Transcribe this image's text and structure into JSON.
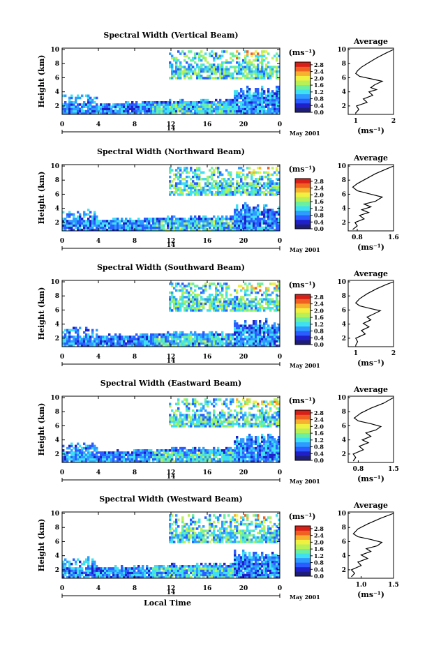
{
  "chart_data": [
    {
      "type": "heatmap",
      "title": "Spectral Width (Vertical Beam)",
      "ylabel": "Height (km)",
      "xlabel": "",
      "x_ticks": [
        "0",
        "4",
        "8",
        "12",
        "16",
        "20",
        "0"
      ],
      "y_ticks": [
        "2",
        "4",
        "6",
        "8",
        "10"
      ],
      "ylim": [
        0.8,
        10.2
      ],
      "xlim": [
        0,
        24
      ],
      "date_label": "14",
      "month_label": "May 2001",
      "colorbar": {
        "unit": "(ms⁻¹)",
        "ticks": [
          "0.0",
          "0.4",
          "0.8",
          "1.2",
          "1.6",
          "2.0",
          "2.4",
          "2.8"
        ]
      },
      "average": {
        "title": "Average",
        "xlabel": "(ms⁻¹)",
        "x_ticks": [
          "1",
          "2"
        ],
        "y_ticks": [
          "2",
          "4",
          "6",
          "8",
          "10"
        ],
        "xlim": [
          0.8,
          2.0
        ],
        "ylim": [
          0.8,
          10.2
        ],
        "profile": [
          [
            1.0,
            1.0
          ],
          [
            1.08,
            1.5
          ],
          [
            1.02,
            2.0
          ],
          [
            1.3,
            2.5
          ],
          [
            1.2,
            3.0
          ],
          [
            1.45,
            3.5
          ],
          [
            1.35,
            4.0
          ],
          [
            1.55,
            4.3
          ],
          [
            1.4,
            4.6
          ],
          [
            1.5,
            5.0
          ],
          [
            1.7,
            5.5
          ],
          [
            1.45,
            5.8
          ],
          [
            1.1,
            6.2
          ],
          [
            1.0,
            6.6
          ],
          [
            1.05,
            7.0
          ],
          [
            1.15,
            7.5
          ],
          [
            1.3,
            8.0
          ],
          [
            1.55,
            8.8
          ],
          [
            1.8,
            9.5
          ],
          [
            2.0,
            10.0
          ]
        ]
      }
    },
    {
      "type": "heatmap",
      "title": "Spectral Width (Northward Beam)",
      "ylabel": "Height (km)",
      "xlabel": "",
      "x_ticks": [
        "0",
        "4",
        "8",
        "12",
        "16",
        "20",
        "0"
      ],
      "y_ticks": [
        "2",
        "4",
        "6",
        "8",
        "10"
      ],
      "ylim": [
        0.8,
        10.2
      ],
      "xlim": [
        0,
        24
      ],
      "date_label": "14",
      "month_label": "May 2001",
      "colorbar": {
        "unit": "(ms⁻¹)",
        "ticks": [
          "0.0",
          "0.4",
          "0.8",
          "1.2",
          "1.6",
          "2.0",
          "2.4",
          "2.8"
        ]
      },
      "average": {
        "title": "Average",
        "xlabel": "(ms⁻¹)",
        "x_ticks": [
          "0.8",
          "1.6"
        ],
        "y_ticks": [
          "2",
          "4",
          "6",
          "8",
          "10"
        ],
        "xlim": [
          0.6,
          1.6
        ],
        "ylim": [
          0.8,
          10.2
        ],
        "profile": [
          [
            0.7,
            1.0
          ],
          [
            0.8,
            1.5
          ],
          [
            0.75,
            2.0
          ],
          [
            0.95,
            2.5
          ],
          [
            0.85,
            3.0
          ],
          [
            1.05,
            3.4
          ],
          [
            0.9,
            3.8
          ],
          [
            1.1,
            4.2
          ],
          [
            0.95,
            4.6
          ],
          [
            1.2,
            5.0
          ],
          [
            1.35,
            5.6
          ],
          [
            1.1,
            6.0
          ],
          [
            0.8,
            6.5
          ],
          [
            0.7,
            7.0
          ],
          [
            0.8,
            7.5
          ],
          [
            1.0,
            8.2
          ],
          [
            1.2,
            8.9
          ],
          [
            1.45,
            9.6
          ],
          [
            1.6,
            10.0
          ]
        ]
      }
    },
    {
      "type": "heatmap",
      "title": "Spectral Width (Southward Beam)",
      "ylabel": "Height (km)",
      "xlabel": "",
      "x_ticks": [
        "0",
        "4",
        "8",
        "12",
        "16",
        "20",
        "0"
      ],
      "y_ticks": [
        "2",
        "4",
        "6",
        "8",
        "10"
      ],
      "ylim": [
        0.8,
        10.2
      ],
      "xlim": [
        0,
        24
      ],
      "date_label": "14",
      "month_label": "May 2001",
      "colorbar": {
        "unit": "(ms⁻¹)",
        "ticks": [
          "0.0",
          "0.4",
          "0.8",
          "1.2",
          "1.6",
          "2.0",
          "2.4",
          "2.8"
        ]
      },
      "average": {
        "title": "Average",
        "xlabel": "(ms⁻¹)",
        "x_ticks": [
          "1",
          "2"
        ],
        "y_ticks": [
          "2",
          "4",
          "6",
          "8",
          "10"
        ],
        "xlim": [
          0.8,
          2.0
        ],
        "ylim": [
          0.8,
          10.2
        ],
        "profile": [
          [
            1.0,
            1.0
          ],
          [
            1.05,
            1.5
          ],
          [
            1.0,
            2.0
          ],
          [
            1.25,
            2.6
          ],
          [
            1.15,
            3.1
          ],
          [
            1.35,
            3.6
          ],
          [
            1.2,
            4.1
          ],
          [
            1.4,
            4.6
          ],
          [
            1.3,
            5.0
          ],
          [
            1.5,
            5.5
          ],
          [
            1.65,
            5.9
          ],
          [
            1.4,
            6.2
          ],
          [
            1.1,
            6.6
          ],
          [
            1.0,
            7.0
          ],
          [
            1.1,
            7.6
          ],
          [
            1.3,
            8.3
          ],
          [
            1.55,
            9.0
          ],
          [
            1.8,
            9.6
          ],
          [
            2.0,
            10.0
          ]
        ]
      }
    },
    {
      "type": "heatmap",
      "title": "Spectral Width (Eastward Beam)",
      "ylabel": "Height (km)",
      "xlabel": "",
      "x_ticks": [
        "0",
        "4",
        "8",
        "12",
        "16",
        "20",
        "0"
      ],
      "y_ticks": [
        "2",
        "4",
        "6",
        "8",
        "10"
      ],
      "ylim": [
        0.8,
        10.2
      ],
      "xlim": [
        0,
        24
      ],
      "date_label": "14",
      "month_label": "May 2001",
      "colorbar": {
        "unit": "(ms⁻¹)",
        "ticks": [
          "0.0",
          "0.4",
          "0.8",
          "1.2",
          "1.6",
          "2.0",
          "2.4",
          "2.8"
        ]
      },
      "average": {
        "title": "Average",
        "xlabel": "(ms⁻¹)",
        "x_ticks": [
          "0.8",
          "1.5"
        ],
        "y_ticks": [
          "2",
          "4",
          "6",
          "8",
          "10"
        ],
        "xlim": [
          0.6,
          1.5
        ],
        "ylim": [
          0.8,
          10.2
        ],
        "profile": [
          [
            0.7,
            1.0
          ],
          [
            0.75,
            1.5
          ],
          [
            0.7,
            2.0
          ],
          [
            0.9,
            2.6
          ],
          [
            0.82,
            3.1
          ],
          [
            1.0,
            3.6
          ],
          [
            0.88,
            4.0
          ],
          [
            1.05,
            4.5
          ],
          [
            0.95,
            5.0
          ],
          [
            1.15,
            5.4
          ],
          [
            1.25,
            5.9
          ],
          [
            1.05,
            6.3
          ],
          [
            0.8,
            6.7
          ],
          [
            0.72,
            7.1
          ],
          [
            0.85,
            7.8
          ],
          [
            1.05,
            8.5
          ],
          [
            1.3,
            9.2
          ],
          [
            1.5,
            10.0
          ]
        ]
      }
    },
    {
      "type": "heatmap",
      "title": "Spectral Width (Westward Beam)",
      "ylabel": "Height (km)",
      "xlabel": "Local Time",
      "x_ticks": [
        "0",
        "4",
        "8",
        "12",
        "16",
        "20",
        "0"
      ],
      "y_ticks": [
        "2",
        "4",
        "6",
        "8",
        "10"
      ],
      "ylim": [
        0.8,
        10.2
      ],
      "xlim": [
        0,
        24
      ],
      "date_label": "14",
      "month_label": "May 2001",
      "colorbar": {
        "unit": "(ms⁻¹)",
        "ticks": [
          "0.0",
          "0.4",
          "0.8",
          "1.2",
          "1.6",
          "2.0",
          "2.4",
          "2.8"
        ]
      },
      "average": {
        "title": "Average",
        "xlabel": "(ms⁻¹)",
        "x_ticks": [
          "1.0",
          "1.5"
        ],
        "y_ticks": [
          "2",
          "4",
          "6",
          "8",
          "10"
        ],
        "xlim": [
          0.8,
          1.5
        ],
        "ylim": [
          0.8,
          10.2
        ],
        "profile": [
          [
            0.85,
            1.0
          ],
          [
            0.9,
            1.5
          ],
          [
            0.85,
            2.0
          ],
          [
            1.0,
            2.6
          ],
          [
            0.95,
            3.1
          ],
          [
            1.1,
            3.6
          ],
          [
            1.0,
            4.1
          ],
          [
            1.15,
            4.6
          ],
          [
            1.08,
            5.0
          ],
          [
            1.25,
            5.4
          ],
          [
            1.32,
            5.9
          ],
          [
            1.15,
            6.3
          ],
          [
            0.95,
            6.7
          ],
          [
            0.88,
            7.1
          ],
          [
            0.95,
            7.8
          ],
          [
            1.1,
            8.5
          ],
          [
            1.3,
            9.3
          ],
          [
            1.5,
            10.0
          ]
        ]
      }
    }
  ]
}
